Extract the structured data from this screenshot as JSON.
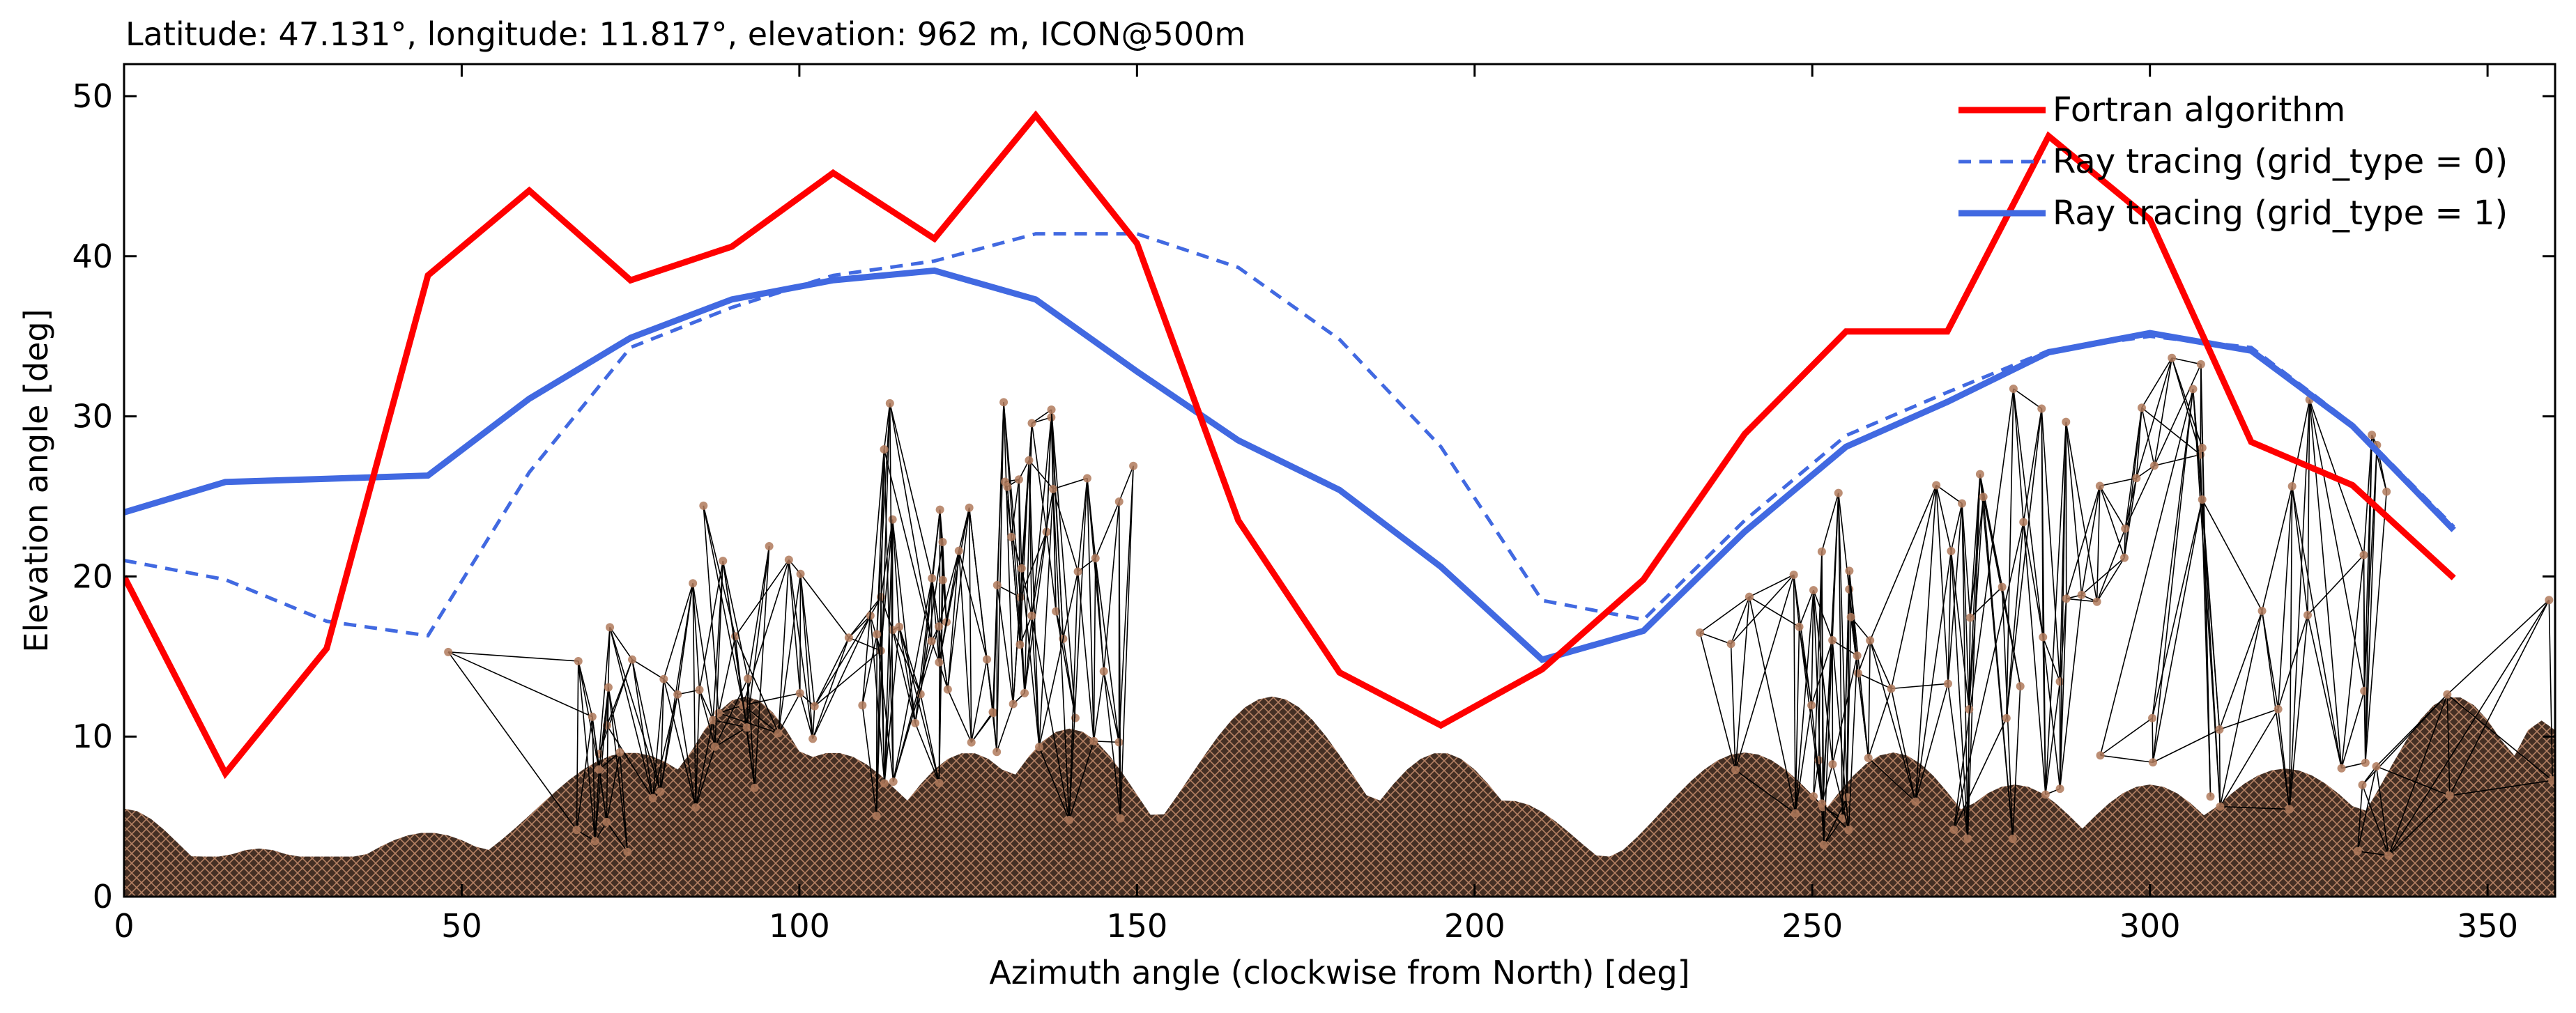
{
  "chart_data": {
    "type": "line",
    "title": "Latitude: 47.131°, longitude: 11.817°, elevation: 962 m, ICON@500m",
    "xlabel": "Azimuth angle (clockwise from North) [deg]",
    "ylabel": "Elevation angle [deg]",
    "xlim": [
      0,
      360
    ],
    "ylim": [
      0,
      52
    ],
    "xticks": [
      0,
      50,
      100,
      150,
      200,
      250,
      300,
      350
    ],
    "yticks": [
      0,
      10,
      20,
      30,
      40,
      50
    ],
    "grid": false,
    "legend_position": "top-right",
    "series": [
      {
        "name": "Fortran algorithm",
        "color": "#ff0000",
        "style": "solid",
        "x": [
          0,
          15,
          30,
          45,
          60,
          75,
          90,
          105,
          120,
          135,
          150,
          165,
          180,
          195,
          210,
          225,
          240,
          255,
          270,
          285,
          300,
          315,
          330,
          345
        ],
        "y": [
          20,
          7.7,
          15.5,
          38.8,
          44.1,
          38.5,
          40.6,
          45.2,
          41.1,
          48.8,
          40.8,
          23.5,
          14.0,
          10.7,
          14.2,
          19.8,
          28.9,
          35.3,
          35.3,
          47.5,
          42.3,
          28.4,
          25.7,
          19.9
        ]
      },
      {
        "name": "Ray tracing (grid_type = 0)",
        "color": "#4169e1",
        "style": "dashed",
        "x": [
          0,
          15,
          30,
          45,
          60,
          75,
          90,
          105,
          120,
          135,
          150,
          165,
          180,
          195,
          210,
          225,
          240,
          255,
          270,
          285,
          300,
          315,
          330,
          345
        ],
        "y": [
          21.0,
          19.8,
          17.2,
          16.3,
          26.5,
          34.3,
          36.8,
          38.8,
          39.7,
          41.4,
          41.4,
          39.3,
          34.8,
          28.1,
          18.5,
          17.3,
          23.5,
          28.8,
          31.5,
          34.1,
          35.0,
          34.3,
          29.5,
          23.1
        ]
      },
      {
        "name": "Ray tracing (grid_type = 1)",
        "color": "#4169e1",
        "style": "solid",
        "x": [
          0,
          15,
          30,
          45,
          60,
          75,
          90,
          105,
          120,
          135,
          150,
          165,
          180,
          195,
          210,
          225,
          240,
          255,
          270,
          285,
          300,
          315,
          330,
          345
        ],
        "y": [
          24.0,
          25.9,
          26.1,
          26.3,
          31.1,
          34.9,
          37.3,
          38.5,
          39.1,
          37.3,
          32.8,
          28.5,
          25.4,
          20.6,
          14.8,
          16.6,
          22.8,
          28.1,
          30.9,
          34.0,
          35.2,
          34.1,
          29.4,
          22.9
        ]
      }
    ]
  }
}
